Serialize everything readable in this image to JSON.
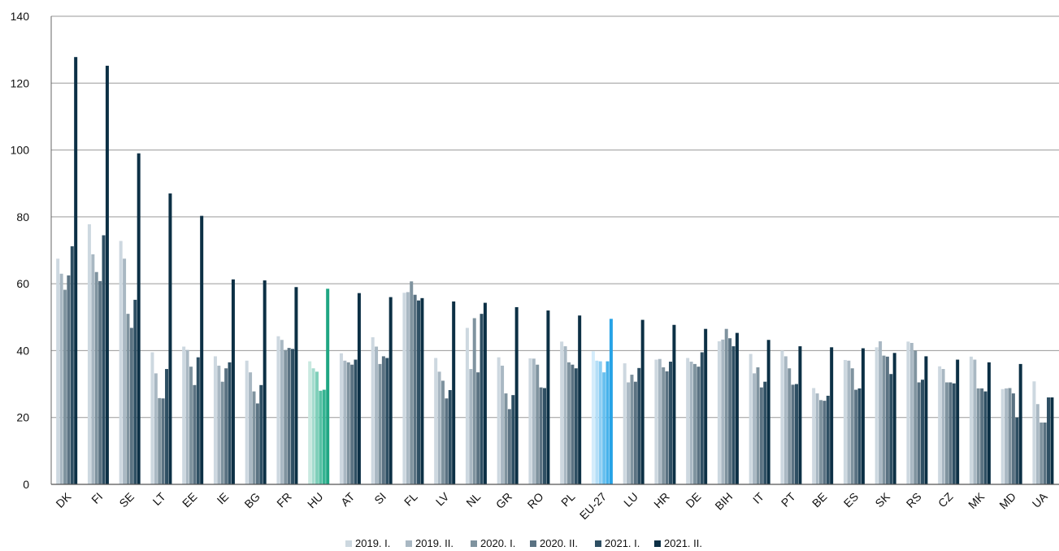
{
  "chart_data": {
    "type": "bar",
    "title": "",
    "xlabel": "",
    "ylabel": "",
    "ylim": [
      0,
      140
    ],
    "yticks": [
      "0",
      "20",
      "40",
      "60",
      "80",
      "100",
      "120",
      "140"
    ],
    "grid": true,
    "legend_position": "bottom",
    "categories": [
      "DK",
      "FI",
      "SE",
      "LT",
      "EE",
      "IE",
      "BG",
      "FR",
      "HU",
      "AT",
      "SI",
      "FL",
      "LV",
      "NL",
      "GR",
      "RO",
      "PL",
      "EU-27",
      "LU",
      "HR",
      "DE",
      "BIH",
      "IT",
      "PT",
      "BE",
      "ES",
      "SK",
      "RS",
      "CZ",
      "MK",
      "MD",
      "UA"
    ],
    "series": [
      {
        "name": "2019. I.",
        "color": "#cdd8e0",
        "values": [
          67.5,
          77.8,
          72.8,
          39.5,
          41.2,
          38.3,
          37.0,
          44.3,
          36.8,
          39.2,
          44.0,
          57.3,
          37.8,
          46.8,
          38.0,
          37.7,
          42.7,
          39.8,
          36.2,
          37.3,
          37.8,
          42.8,
          39.0,
          40.0,
          28.8,
          37.2,
          41.0,
          42.7,
          35.3,
          38.2,
          28.5,
          30.8
        ]
      },
      {
        "name": "2019. II.",
        "color": "#a9b8c3",
        "values": [
          63.0,
          68.8,
          67.5,
          33.2,
          40.2,
          35.5,
          33.5,
          43.2,
          34.7,
          37.0,
          41.2,
          57.5,
          33.7,
          34.5,
          35.5,
          37.6,
          41.3,
          37.0,
          30.5,
          37.5,
          36.7,
          43.3,
          33.2,
          38.3,
          27.2,
          37.0,
          42.8,
          42.3,
          34.5,
          37.3,
          28.7,
          24.0
        ]
      },
      {
        "name": "2020. I.",
        "color": "#7f939f",
        "values": [
          58.2,
          63.5,
          51.0,
          25.8,
          35.2,
          30.7,
          27.8,
          40.2,
          33.7,
          36.5,
          36.0,
          60.7,
          31.0,
          49.7,
          27.2,
          35.8,
          36.5,
          36.8,
          32.8,
          35.0,
          36.0,
          46.5,
          35.0,
          34.7,
          25.2,
          34.7,
          38.5,
          40.0,
          30.5,
          28.7,
          28.8,
          18.5
        ]
      },
      {
        "name": "2020. II.",
        "color": "#5a7282",
        "values": [
          62.5,
          60.8,
          46.8,
          25.7,
          29.7,
          34.7,
          24.2,
          40.8,
          28.0,
          35.8,
          38.3,
          56.7,
          25.7,
          33.5,
          22.5,
          29.0,
          35.8,
          33.5,
          30.7,
          33.8,
          35.2,
          43.7,
          29.0,
          29.8,
          25.0,
          28.3,
          38.2,
          30.5,
          30.5,
          28.7,
          27.2,
          18.5
        ]
      },
      {
        "name": "2021. I.",
        "color": "#2e4f63",
        "values": [
          71.2,
          74.5,
          55.2,
          34.5,
          38.0,
          36.5,
          29.7,
          40.5,
          28.3,
          37.3,
          37.8,
          55.0,
          28.2,
          51.0,
          26.7,
          28.8,
          34.7,
          36.8,
          34.8,
          36.7,
          39.5,
          41.3,
          30.7,
          30.0,
          26.5,
          28.7,
          33.0,
          31.3,
          30.2,
          27.8,
          20.0,
          26.0
        ]
      },
      {
        "name": "2021. II.",
        "color": "#0c3045",
        "values": [
          127.8,
          125.2,
          99.0,
          87.0,
          80.3,
          61.3,
          61.0,
          59.0,
          58.5,
          57.2,
          56.0,
          55.7,
          54.7,
          54.3,
          53.0,
          52.0,
          50.5,
          49.5,
          49.2,
          47.7,
          46.5,
          45.3,
          43.2,
          41.3,
          41.0,
          40.7,
          39.3,
          38.3,
          37.3,
          36.5,
          36.0,
          26.0
        ]
      }
    ],
    "highlight_colors": {
      "HU": [
        "#c9e9e0",
        "#a6dccf",
        "#7fcfba",
        "#56c1a4",
        "#35b492",
        "#1fa683"
      ],
      "EU-27": [
        "#d4ecfb",
        "#b4def7",
        "#8dcef3",
        "#68c0ef",
        "#48b2eb",
        "#26a3e6"
      ]
    }
  }
}
